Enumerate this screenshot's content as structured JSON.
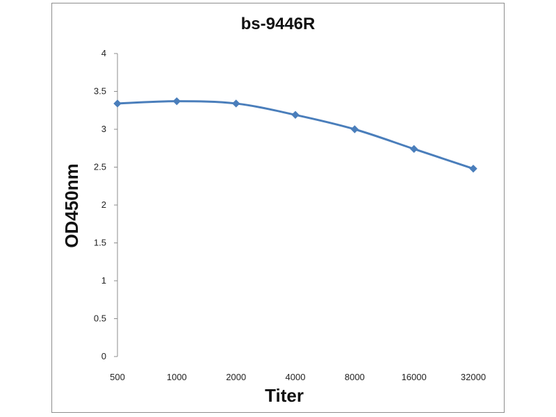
{
  "chart_data": {
    "type": "line",
    "title": "bs-9446R",
    "xlabel": "Titer",
    "ylabel": "OD450nm",
    "categories": [
      "500",
      "1000",
      "2000",
      "4000",
      "8000",
      "16000",
      "32000"
    ],
    "series": [
      {
        "values": [
          3.34,
          3.37,
          3.34,
          3.19,
          3.0,
          2.74,
          2.48
        ]
      }
    ],
    "ylim": [
      0,
      4
    ],
    "yticks": [
      "0",
      "0.5",
      "1",
      "1.5",
      "2",
      "2.5",
      "3",
      "3.5",
      "4"
    ],
    "grid": false,
    "legend": "none",
    "line_color": "#4a7ebb",
    "marker": "diamond"
  }
}
